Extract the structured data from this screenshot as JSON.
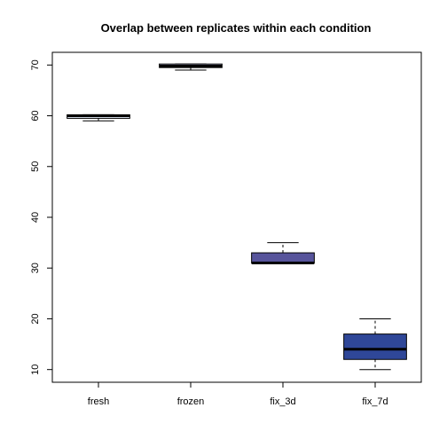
{
  "chart_data": {
    "type": "box",
    "title": "Overlap between replicates within each condition",
    "xlabel": "",
    "ylabel": "",
    "ylim": [
      7.5,
      72.5
    ],
    "yticks": [
      10,
      20,
      30,
      40,
      50,
      60,
      70
    ],
    "categories": [
      "fresh",
      "frozen",
      "fix_3d",
      "fix_7d"
    ],
    "boxes": [
      {
        "label": "fresh",
        "min": 59.0,
        "q1": 59.5,
        "median": 60.0,
        "q3": 60.2,
        "max": 60.2,
        "fill": "#e3ecf8"
      },
      {
        "label": "frozen",
        "min": 69.0,
        "q1": 69.5,
        "median": 69.8,
        "q3": 70.2,
        "max": 70.2,
        "fill": "#c7cbee"
      },
      {
        "label": "fix_3d",
        "min": 31.0,
        "q1": 31.0,
        "median": 31.0,
        "q3": 33.0,
        "max": 35.0,
        "fill": "#57549b"
      },
      {
        "label": "fix_7d",
        "min": 10.0,
        "q1": 12.0,
        "median": 14.0,
        "q3": 17.0,
        "max": 20.0,
        "fill": "#2f4798"
      }
    ],
    "grid": false,
    "legend": "none"
  }
}
